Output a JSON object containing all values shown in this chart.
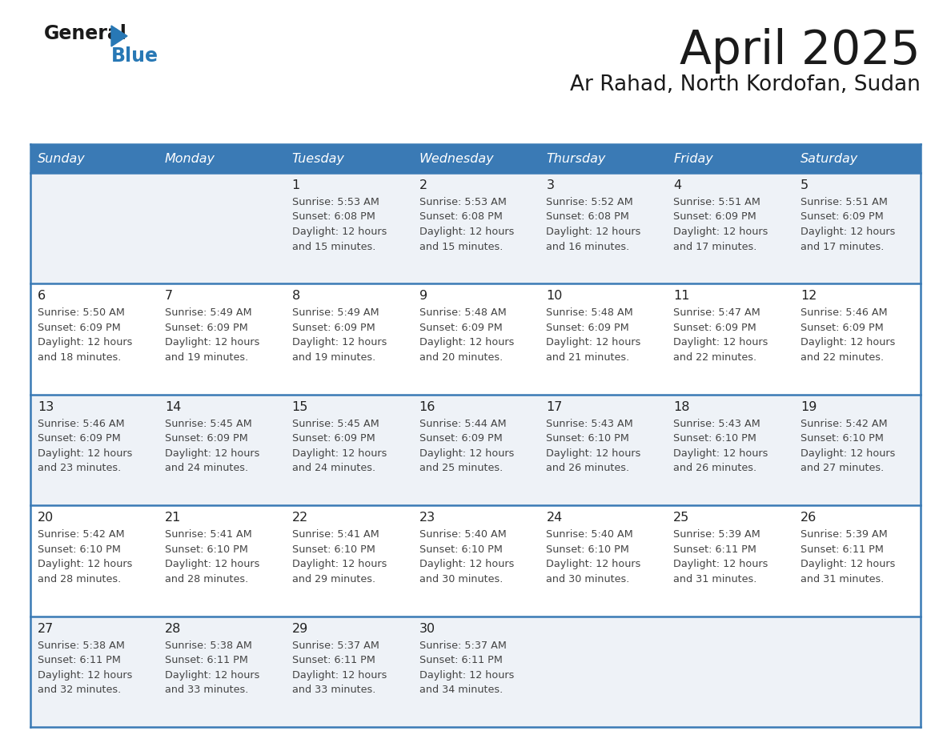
{
  "title": "April 2025",
  "subtitle": "Ar Rahad, North Kordofan, Sudan",
  "header_bg_color": "#3a7ab5",
  "header_text_color": "#ffffff",
  "weekdays": [
    "Sunday",
    "Monday",
    "Tuesday",
    "Wednesday",
    "Thursday",
    "Friday",
    "Saturday"
  ],
  "row_colors": [
    "#eef2f7",
    "#ffffff"
  ],
  "border_color": "#3a7ab5",
  "text_color": "#444444",
  "day_number_color": "#222222",
  "calendar_data": [
    [
      {
        "day": "",
        "sunrise": "",
        "sunset": "",
        "daylight": ""
      },
      {
        "day": "",
        "sunrise": "",
        "sunset": "",
        "daylight": ""
      },
      {
        "day": "1",
        "sunrise": "5:53 AM",
        "sunset": "6:08 PM",
        "daylight": "12 hours and 15 minutes."
      },
      {
        "day": "2",
        "sunrise": "5:53 AM",
        "sunset": "6:08 PM",
        "daylight": "12 hours and 15 minutes."
      },
      {
        "day": "3",
        "sunrise": "5:52 AM",
        "sunset": "6:08 PM",
        "daylight": "12 hours and 16 minutes."
      },
      {
        "day": "4",
        "sunrise": "5:51 AM",
        "sunset": "6:09 PM",
        "daylight": "12 hours and 17 minutes."
      },
      {
        "day": "5",
        "sunrise": "5:51 AM",
        "sunset": "6:09 PM",
        "daylight": "12 hours and 17 minutes."
      }
    ],
    [
      {
        "day": "6",
        "sunrise": "5:50 AM",
        "sunset": "6:09 PM",
        "daylight": "12 hours and 18 minutes."
      },
      {
        "day": "7",
        "sunrise": "5:49 AM",
        "sunset": "6:09 PM",
        "daylight": "12 hours and 19 minutes."
      },
      {
        "day": "8",
        "sunrise": "5:49 AM",
        "sunset": "6:09 PM",
        "daylight": "12 hours and 19 minutes."
      },
      {
        "day": "9",
        "sunrise": "5:48 AM",
        "sunset": "6:09 PM",
        "daylight": "12 hours and 20 minutes."
      },
      {
        "day": "10",
        "sunrise": "5:48 AM",
        "sunset": "6:09 PM",
        "daylight": "12 hours and 21 minutes."
      },
      {
        "day": "11",
        "sunrise": "5:47 AM",
        "sunset": "6:09 PM",
        "daylight": "12 hours and 22 minutes."
      },
      {
        "day": "12",
        "sunrise": "5:46 AM",
        "sunset": "6:09 PM",
        "daylight": "12 hours and 22 minutes."
      }
    ],
    [
      {
        "day": "13",
        "sunrise": "5:46 AM",
        "sunset": "6:09 PM",
        "daylight": "12 hours and 23 minutes."
      },
      {
        "day": "14",
        "sunrise": "5:45 AM",
        "sunset": "6:09 PM",
        "daylight": "12 hours and 24 minutes."
      },
      {
        "day": "15",
        "sunrise": "5:45 AM",
        "sunset": "6:09 PM",
        "daylight": "12 hours and 24 minutes."
      },
      {
        "day": "16",
        "sunrise": "5:44 AM",
        "sunset": "6:09 PM",
        "daylight": "12 hours and 25 minutes."
      },
      {
        "day": "17",
        "sunrise": "5:43 AM",
        "sunset": "6:10 PM",
        "daylight": "12 hours and 26 minutes."
      },
      {
        "day": "18",
        "sunrise": "5:43 AM",
        "sunset": "6:10 PM",
        "daylight": "12 hours and 26 minutes."
      },
      {
        "day": "19",
        "sunrise": "5:42 AM",
        "sunset": "6:10 PM",
        "daylight": "12 hours and 27 minutes."
      }
    ],
    [
      {
        "day": "20",
        "sunrise": "5:42 AM",
        "sunset": "6:10 PM",
        "daylight": "12 hours and 28 minutes."
      },
      {
        "day": "21",
        "sunrise": "5:41 AM",
        "sunset": "6:10 PM",
        "daylight": "12 hours and 28 minutes."
      },
      {
        "day": "22",
        "sunrise": "5:41 AM",
        "sunset": "6:10 PM",
        "daylight": "12 hours and 29 minutes."
      },
      {
        "day": "23",
        "sunrise": "5:40 AM",
        "sunset": "6:10 PM",
        "daylight": "12 hours and 30 minutes."
      },
      {
        "day": "24",
        "sunrise": "5:40 AM",
        "sunset": "6:10 PM",
        "daylight": "12 hours and 30 minutes."
      },
      {
        "day": "25",
        "sunrise": "5:39 AM",
        "sunset": "6:11 PM",
        "daylight": "12 hours and 31 minutes."
      },
      {
        "day": "26",
        "sunrise": "5:39 AM",
        "sunset": "6:11 PM",
        "daylight": "12 hours and 31 minutes."
      }
    ],
    [
      {
        "day": "27",
        "sunrise": "5:38 AM",
        "sunset": "6:11 PM",
        "daylight": "12 hours and 32 minutes."
      },
      {
        "day": "28",
        "sunrise": "5:38 AM",
        "sunset": "6:11 PM",
        "daylight": "12 hours and 33 minutes."
      },
      {
        "day": "29",
        "sunrise": "5:37 AM",
        "sunset": "6:11 PM",
        "daylight": "12 hours and 33 minutes."
      },
      {
        "day": "30",
        "sunrise": "5:37 AM",
        "sunset": "6:11 PM",
        "daylight": "12 hours and 34 minutes."
      },
      {
        "day": "",
        "sunrise": "",
        "sunset": "",
        "daylight": ""
      },
      {
        "day": "",
        "sunrise": "",
        "sunset": "",
        "daylight": ""
      },
      {
        "day": "",
        "sunrise": "",
        "sunset": "",
        "daylight": ""
      }
    ]
  ],
  "logo_general_color": "#1a1a1a",
  "logo_blue_color": "#2878b5",
  "logo_triangle_color": "#2878b5",
  "fig_width": 11.88,
  "fig_height": 9.18,
  "dpi": 100
}
